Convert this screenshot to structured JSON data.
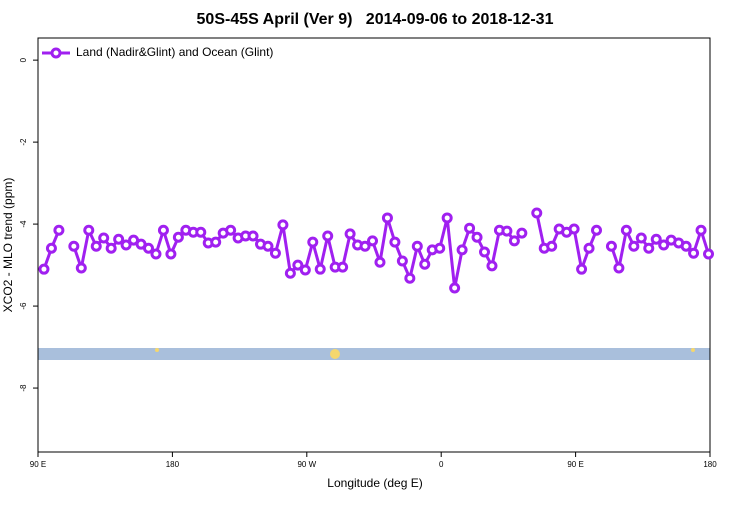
{
  "chart_data": {
    "type": "line",
    "title": "50S-45S April (Ver 9)   2014-09-06 to 2018-12-31",
    "xlabel": "Longitude (deg E)",
    "ylabel": "XCO2 - MLO trend (ppm)",
    "x": [
      94,
      99,
      104,
      109,
      114,
      119,
      124,
      129,
      134,
      139,
      144,
      149,
      154,
      159,
      164,
      169,
      174,
      179,
      184,
      189,
      194,
      199,
      204,
      209,
      214,
      219,
      224,
      229,
      234,
      239,
      244,
      249,
      254,
      259,
      264,
      269,
      274,
      279,
      284,
      289,
      294,
      299,
      304,
      309,
      314,
      319,
      324,
      329,
      334,
      339,
      344,
      349,
      354,
      359,
      364,
      369,
      374,
      379,
      384,
      389,
      394,
      399,
      404,
      409,
      414,
      419,
      424,
      429,
      434,
      439,
      444,
      449,
      454,
      459,
      464,
      469,
      474,
      479,
      484,
      489,
      494,
      499,
      504,
      509,
      514,
      519,
      524,
      529,
      534,
      539
    ],
    "series": [
      {
        "name": "Land (Nadir&Glint) and Ocean (Glint)",
        "color": "#a020f0",
        "values": [
          -5.1,
          -4.59,
          -4.15,
          null,
          -4.54,
          -5.07,
          -4.15,
          -4.54,
          -4.34,
          -4.59,
          -4.37,
          -4.51,
          -4.39,
          -4.49,
          -4.59,
          -4.73,
          -4.15,
          -4.73,
          -4.32,
          -4.15,
          -4.2,
          -4.2,
          -4.46,
          -4.44,
          -4.22,
          -4.15,
          -4.34,
          -4.29,
          -4.29,
          -4.49,
          -4.54,
          -4.71,
          -4.02,
          -5.2,
          -5.0,
          -5.12,
          -4.44,
          -5.1,
          -4.29,
          -5.05,
          -5.05,
          -4.24,
          -4.51,
          -4.54,
          -4.41,
          -4.93,
          -3.85,
          -4.44,
          -4.9,
          -5.32,
          -4.54,
          -4.98,
          -4.63,
          -4.59,
          -3.85,
          -5.56,
          -4.63,
          -4.1,
          -4.32,
          -4.68,
          -5.02,
          -4.15,
          -4.17,
          -4.41,
          -4.22,
          null,
          -3.73,
          -4.59,
          -4.54,
          -4.12,
          -4.2,
          -4.12,
          -5.1,
          -4.59,
          -4.15,
          null,
          -4.54,
          -5.07,
          -4.15,
          -4.54,
          -4.34,
          -4.59,
          -4.37,
          -4.51,
          -4.39,
          -4.46,
          -4.54,
          -4.71,
          -4.15,
          -4.73
        ]
      }
    ],
    "xlim": [
      90,
      540
    ],
    "xticks": [
      {
        "value": 90,
        "label": "90 E"
      },
      {
        "value": 180,
        "label": "180"
      },
      {
        "value": 270,
        "label": "90 W"
      },
      {
        "value": 360,
        "label": "0"
      },
      {
        "value": 450,
        "label": "90 E"
      },
      {
        "value": 540,
        "label": "180"
      }
    ],
    "ylim": [
      -9.56,
      0.54
    ],
    "yticks": [
      0,
      -2,
      -4,
      -6,
      -8
    ],
    "legend": "top-left"
  }
}
